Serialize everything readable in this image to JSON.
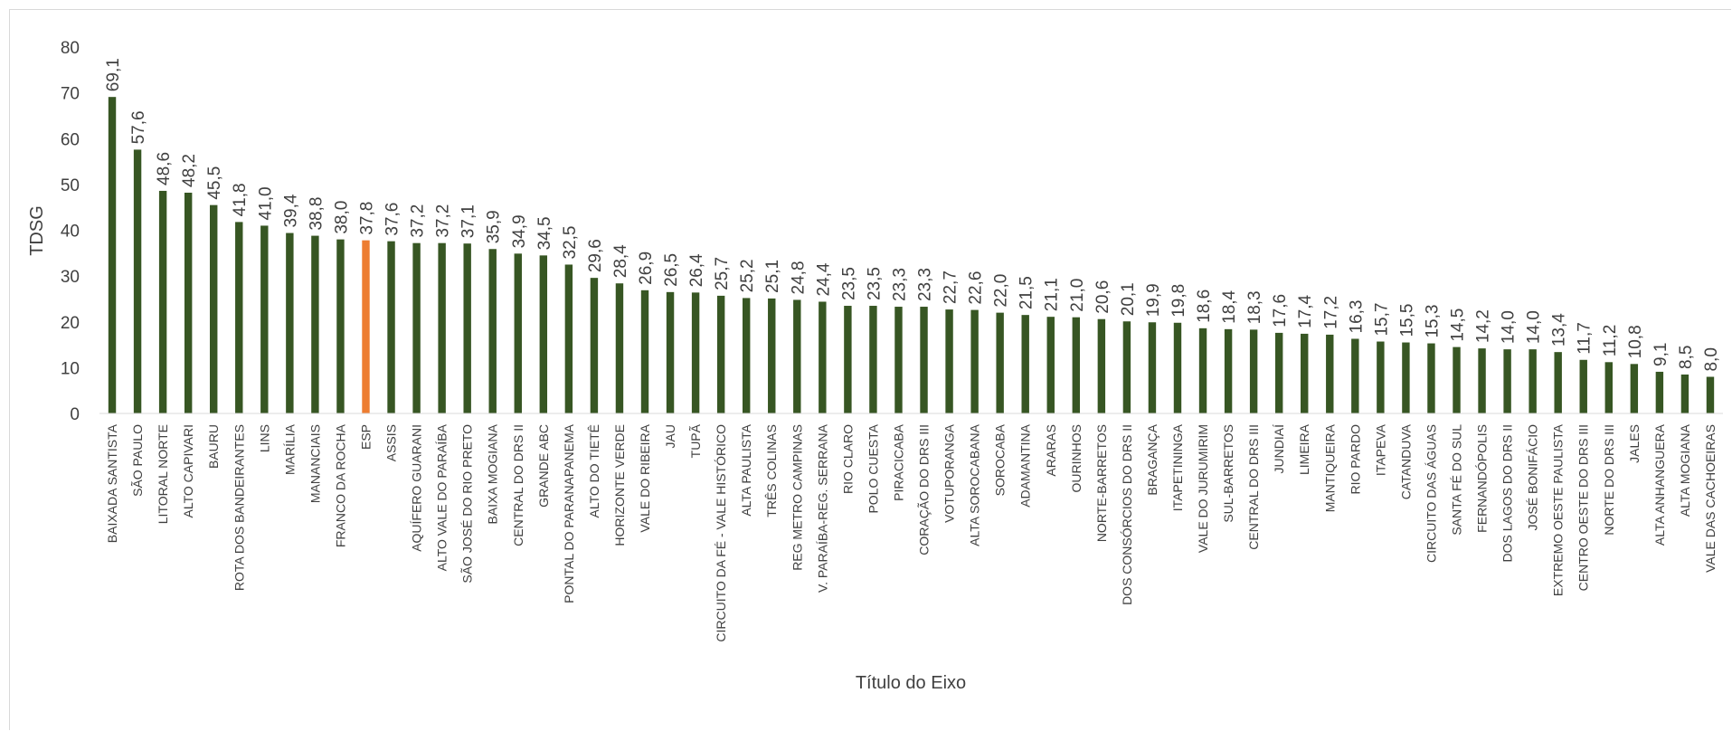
{
  "chart_data": {
    "type": "bar",
    "title": "",
    "xlabel": "Título do Eixo",
    "ylabel": "TDSG",
    "ylim": [
      0,
      80
    ],
    "yticks": [
      0,
      10,
      20,
      30,
      40,
      50,
      60,
      70,
      80
    ],
    "grid": false,
    "legend": "none",
    "bar_color": "#375623",
    "highlight_color": "#ED7D31",
    "highlight_category": "ESP",
    "categories": [
      "BAIXADA SANTISTA",
      "SÃO PAULO",
      "LITORAL NORTE",
      "ALTO CAPIVARI",
      "BAURU",
      "ROTA DOS BANDEIRANTES",
      "LINS",
      "MARÍLIA",
      "MANANCIAIS",
      "FRANCO DA ROCHA",
      "ESP",
      "ASSIS",
      "AQUÍFERO GUARANI",
      "ALTO VALE DO PARAÍBA",
      "SÃO JOSÉ DO RIO PRETO",
      "BAIXA MOGIANA",
      "CENTRAL DO DRS II",
      "GRANDE ABC",
      "PONTAL DO PARANAPANEMA",
      "ALTO DO TIETÊ",
      "HORIZONTE VERDE",
      "VALE DO RIBEIRA",
      "JAU",
      "TUPÃ",
      "CIRCUITO DA FÉ - VALE HISTÓRICO",
      "ALTA PAULISTA",
      "TRÊS COLINAS",
      "REG METRO CAMPINAS",
      "V. PARAÍBA-REG. SERRANA",
      "RIO CLARO",
      "POLO CUESTA",
      "PIRACICABA",
      "CORAÇÃO DO DRS III",
      "VOTUPORANGA",
      "ALTA SOROCABANA",
      "SOROCABA",
      "ADAMANTINA",
      "ARARAS",
      "OURINHOS",
      "NORTE-BARRETOS",
      "DOS CONSÓRCIOS DO DRS II",
      "BRAGANÇA",
      "ITAPETININGA",
      "VALE DO JURUMIRIM",
      "SUL-BARRETOS",
      "CENTRAL DO DRS III",
      "JUNDIAÍ",
      "LIMEIRA",
      "MANTIQUEIRA",
      "RIO PARDO",
      "ITAPEVA",
      "CATANDUVA",
      "CIRCUITO DAS ÁGUAS",
      "SANTA FÉ DO SUL",
      "FERNANDÓPOLIS",
      "DOS LAGOS DO DRS II",
      "JOSÉ BONIFÁCIO",
      "EXTREMO OESTE PAULISTA",
      "CENTRO OESTE DO DRS III",
      "NORTE DO DRS III",
      "JALES",
      "ALTA ANHANGUERA",
      "ALTA MOGIANA",
      "VALE DAS CACHOEIRAS"
    ],
    "values": [
      69.1,
      57.6,
      48.6,
      48.2,
      45.5,
      41.8,
      41.0,
      39.4,
      38.8,
      38.0,
      37.8,
      37.6,
      37.2,
      37.2,
      37.1,
      35.9,
      34.9,
      34.5,
      32.5,
      29.6,
      28.4,
      26.9,
      26.5,
      26.4,
      25.7,
      25.2,
      25.1,
      24.8,
      24.4,
      23.5,
      23.5,
      23.3,
      23.3,
      22.7,
      22.6,
      22.0,
      21.5,
      21.1,
      21.0,
      20.6,
      20.1,
      19.9,
      19.8,
      18.6,
      18.4,
      18.3,
      17.6,
      17.4,
      17.2,
      16.3,
      15.7,
      15.5,
      15.3,
      14.5,
      14.2,
      14.0,
      14.0,
      13.4,
      11.7,
      11.2,
      10.8,
      9.1,
      8.5,
      8.0
    ],
    "data_labels": [
      "69,1",
      "57,6",
      "48,6",
      "48,2",
      "45,5",
      "41,8",
      "41,0",
      "39,4",
      "38,8",
      "38,0",
      "37,8",
      "37,6",
      "37,2",
      "37,2",
      "37,1",
      "35,9",
      "34,9",
      "34,5",
      "32,5",
      "29,6",
      "28,4",
      "26,9",
      "26,5",
      "26,4",
      "25,7",
      "25,2",
      "25,1",
      "24,8",
      "24,4",
      "23,5",
      "23,5",
      "23,3",
      "23,3",
      "22,7",
      "22,6",
      "22,0",
      "21,5",
      "21,1",
      "21,0",
      "20,6",
      "20,1",
      "19,9",
      "19,8",
      "18,6",
      "18,4",
      "18,3",
      "17,6",
      "17,4",
      "17,2",
      "16,3",
      "15,7",
      "15,5",
      "15,3",
      "14,5",
      "14,2",
      "14,0",
      "14,0",
      "13,4",
      "11,7",
      "11,2",
      "10,8",
      "9,1",
      "8,5",
      "8,0"
    ]
  }
}
